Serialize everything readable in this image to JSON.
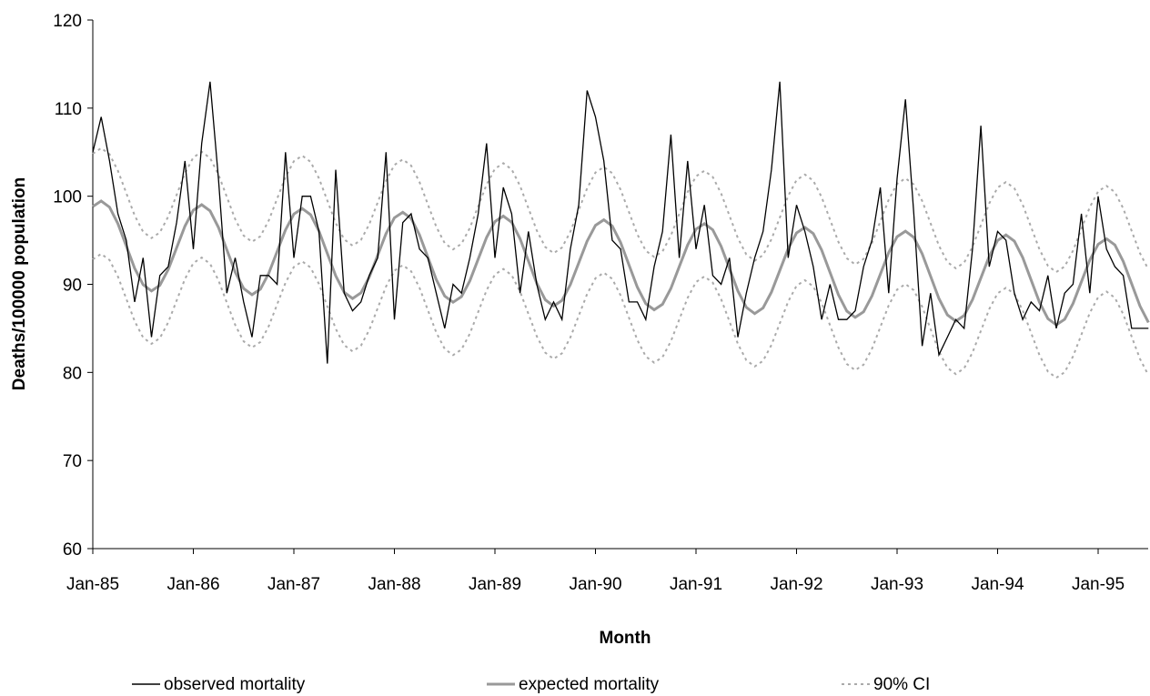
{
  "chart_data": {
    "type": "line",
    "xlabel": "Month",
    "ylabel": "Deaths/100000 population",
    "ylim": [
      60,
      120
    ],
    "yticks": [
      60,
      70,
      80,
      90,
      100,
      110,
      120
    ],
    "x_start": "Jan-85",
    "x_end": "Jul-95",
    "xtick_labels": [
      "Jan-85",
      "Jan-86",
      "Jan-87",
      "Jan-88",
      "Jan-89",
      "Jan-90",
      "Jan-91",
      "Jan-92",
      "Jan-93",
      "Jan-94",
      "Jan-95"
    ],
    "grid": false,
    "legend_position": "bottom",
    "series": [
      {
        "name": "observed mortality",
        "color": "#000000",
        "style": "solid",
        "monthly_values_1985_to_1995": [
          [
            105,
            109,
            104,
            98,
            95,
            88,
            93,
            84,
            91,
            92,
            97,
            104
          ],
          [
            94,
            106,
            113,
            102,
            89,
            93,
            88,
            84,
            91,
            91,
            90,
            105
          ],
          [
            93,
            100,
            100,
            96,
            81,
            103,
            89,
            87,
            88,
            91,
            93,
            105
          ],
          [
            86,
            97,
            98,
            94,
            93,
            89,
            85,
            90,
            89,
            93,
            98,
            106
          ],
          [
            93,
            101,
            98,
            89,
            96,
            90,
            86,
            88,
            86,
            94,
            99,
            112
          ],
          [
            109,
            104,
            95,
            94,
            88,
            88,
            86,
            92,
            96,
            107,
            93,
            104
          ],
          [
            94,
            99,
            91,
            90,
            93,
            84,
            89,
            93,
            96,
            103,
            113,
            93
          ],
          [
            99,
            96,
            92,
            86,
            90,
            86,
            86,
            87,
            92,
            95,
            101,
            89
          ],
          [
            102,
            111,
            98,
            83,
            89,
            82,
            84,
            86,
            85,
            94,
            108,
            92
          ],
          [
            96,
            95,
            89,
            86,
            88,
            87,
            91,
            85,
            89,
            90,
            98,
            89
          ],
          [
            100,
            94,
            92,
            91,
            85,
            85,
            85
          ]
        ]
      },
      {
        "name": "expected mortality",
        "color": "#999999",
        "style": "solid",
        "mean_start": 94.5,
        "mean_end": 90.0,
        "amplitude": 5.0,
        "peak_month_index": 1
      },
      {
        "name": "90% CI",
        "color": "#aaaaaa",
        "style": "dotted",
        "band_halfwidth": 6.0
      }
    ]
  }
}
